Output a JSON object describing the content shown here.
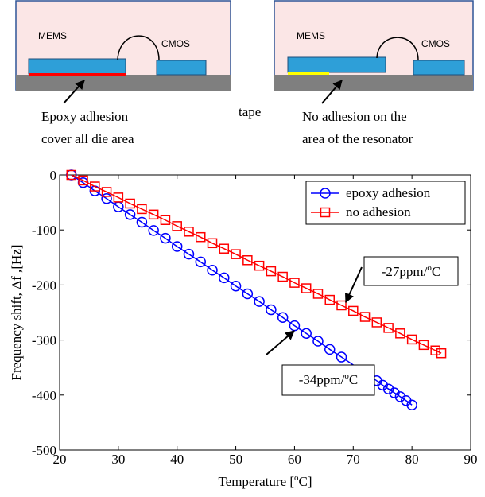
{
  "diagrams": {
    "left": {
      "mems": "MEMS",
      "cmos": "CMOS",
      "caption": [
        "Epoxy adhesion",
        "cover all die area"
      ]
    },
    "right": {
      "mems": "MEMS",
      "cmos": "CMOS",
      "tape": "tape",
      "caption": [
        "No adhesion on the",
        "area of the resonator"
      ]
    }
  },
  "chart_data": {
    "type": "line",
    "x_label": {
      "text": "Temperature [",
      "sup": "o",
      "tail": "C]"
    },
    "y_label": "Frequency shift, Δf ,[Hz]",
    "xlim": [
      20,
      90
    ],
    "xticks": [
      20,
      30,
      40,
      50,
      60,
      70,
      80,
      90
    ],
    "ylim": [
      -500,
      0
    ],
    "yticks": [
      0,
      -100,
      -200,
      -300,
      -400,
      -500
    ],
    "grid": false,
    "legend": "upper right",
    "series": [
      {
        "name": "epoxy adhesion",
        "color": "#0000ff",
        "marker": "circle",
        "x": [
          22,
          24,
          26,
          28,
          30,
          32,
          34,
          36,
          38,
          40,
          42,
          44,
          46,
          48,
          50,
          52,
          54,
          56,
          58,
          60,
          62,
          64,
          66,
          68,
          74,
          75,
          76,
          77,
          78,
          79,
          80
        ],
        "values": [
          0,
          -14,
          -29,
          -43,
          -58,
          -72,
          -86,
          -101,
          -115,
          -130,
          -144,
          -158,
          -173,
          -187,
          -202,
          -216,
          -230,
          -245,
          -259,
          -274,
          -288,
          -302,
          -317,
          -331,
          -374,
          -382,
          -389,
          -396,
          -403,
          -410,
          -418
        ]
      },
      {
        "name": "no adhesion",
        "color": "#ff0000",
        "marker": "square",
        "x": [
          22,
          24,
          26,
          28,
          30,
          32,
          34,
          36,
          38,
          40,
          42,
          44,
          46,
          48,
          50,
          52,
          54,
          56,
          58,
          60,
          62,
          64,
          66,
          68,
          70,
          72,
          74,
          76,
          78,
          80,
          82,
          84,
          85
        ],
        "values": [
          0,
          -10,
          -21,
          -31,
          -41,
          -52,
          -62,
          -72,
          -82,
          -93,
          -103,
          -113,
          -124,
          -134,
          -144,
          -155,
          -165,
          -175,
          -185,
          -196,
          -206,
          -216,
          -227,
          -237,
          -247,
          -258,
          -268,
          -278,
          -288,
          -299,
          -309,
          -319,
          -324
        ]
      }
    ],
    "annotations": [
      {
        "text": "-27ppm/",
        "sup": "o",
        "tail": "C"
      },
      {
        "text": "-34ppm/",
        "sup": "o",
        "tail": "C"
      }
    ]
  }
}
